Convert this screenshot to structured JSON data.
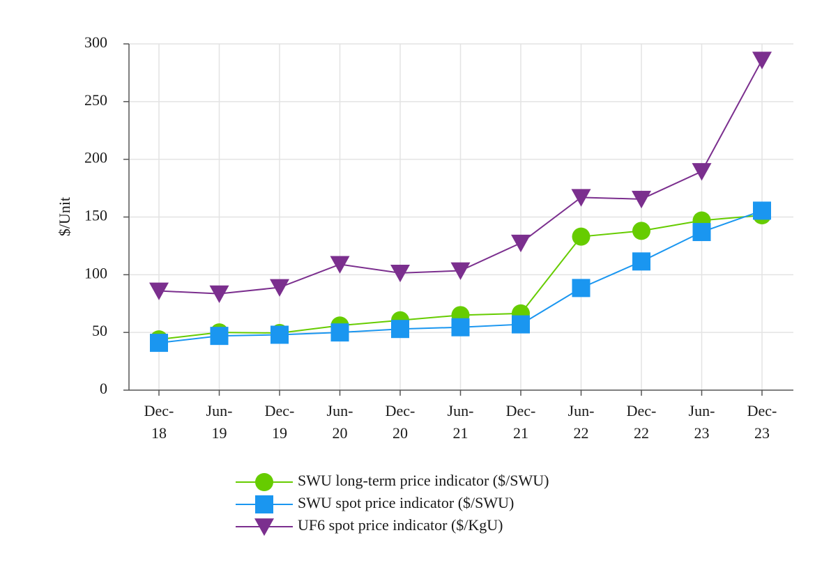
{
  "chart_data": {
    "type": "line",
    "ylabel": "$/Unit",
    "ylim": [
      0,
      300
    ],
    "yticks": [
      0,
      50,
      100,
      150,
      200,
      250,
      300
    ],
    "grid": true,
    "legend_position": "bottom",
    "categories": [
      [
        "Dec-",
        "18"
      ],
      [
        "Jun-",
        "19"
      ],
      [
        "Dec-",
        "19"
      ],
      [
        "Jun-",
        "20"
      ],
      [
        "Dec-",
        "20"
      ],
      [
        "Jun-",
        "21"
      ],
      [
        "Dec-",
        "21"
      ],
      [
        "Jun-",
        "22"
      ],
      [
        "Dec-",
        "22"
      ],
      [
        "Jun-",
        "23"
      ],
      [
        "Dec-",
        "23"
      ]
    ],
    "series": [
      {
        "name": "SWU long-term price indicator ($/SWU)",
        "marker": "circle",
        "color": "#66cc00",
        "values": [
          44,
          50,
          49.5,
          56,
          60.5,
          65,
          66.5,
          133,
          138,
          147,
          151.5
        ]
      },
      {
        "name": "SWU spot price indicator ($/SWU)",
        "marker": "square",
        "color": "#1a96f0",
        "values": [
          41,
          47,
          48,
          50,
          53,
          54.5,
          57,
          88.5,
          111.5,
          137,
          155.5
        ]
      },
      {
        "name": "UF6 spot price indicator ($/KgU)",
        "marker": "triangle-down",
        "color": "#7b2f8e",
        "values": [
          86,
          83.5,
          89,
          109,
          101.5,
          103.5,
          127.5,
          167,
          165.5,
          189.5,
          286
        ]
      }
    ]
  }
}
